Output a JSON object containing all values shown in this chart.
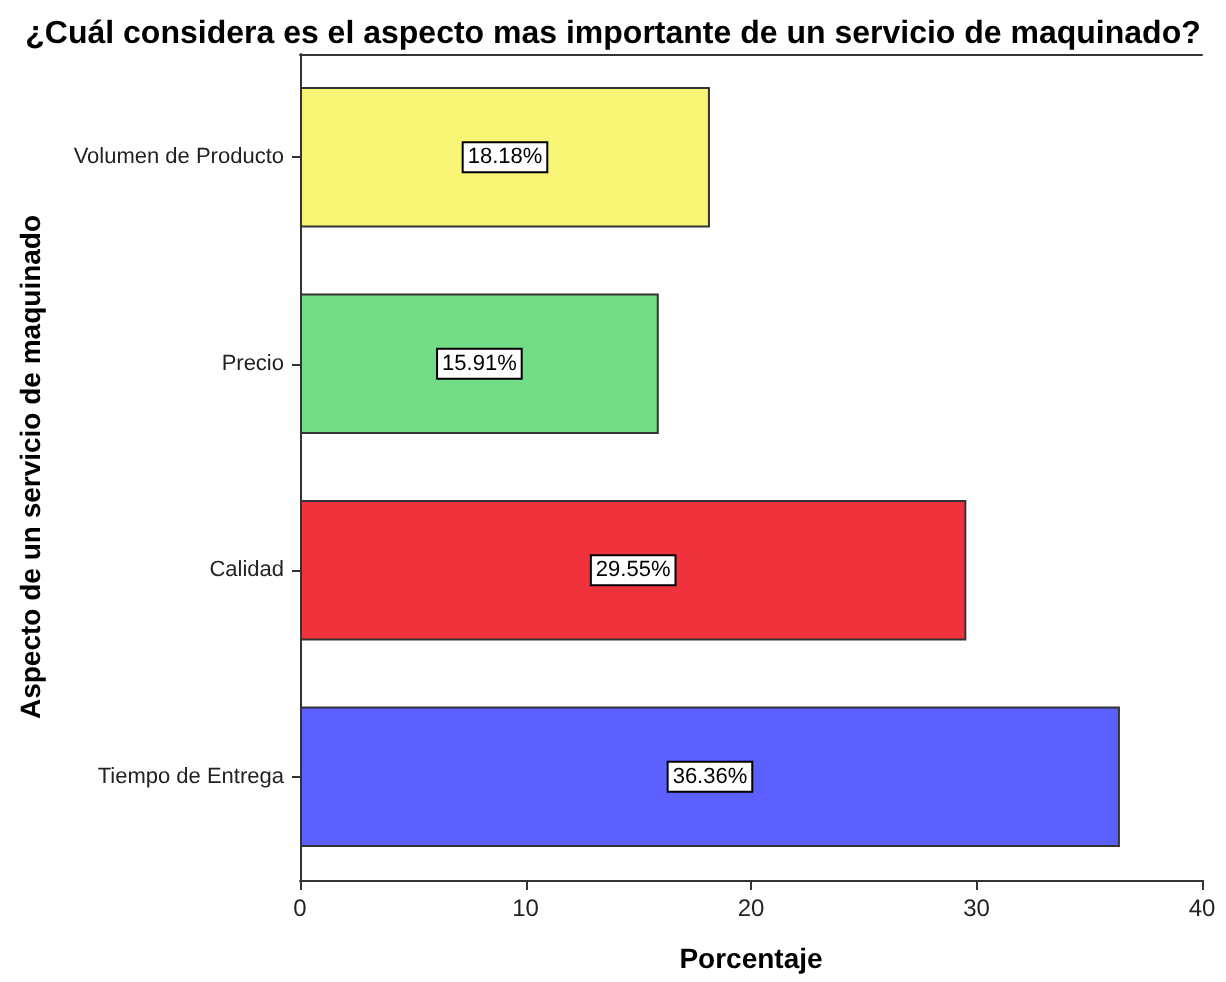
{
  "chart_data": {
    "type": "bar",
    "orientation": "horizontal",
    "title": "¿Cuál considera es el aspecto mas importante de un servicio de maquinado?",
    "xlabel": "Porcentaje",
    "ylabel": "Aspecto de un servicio de maquinado",
    "categories": [
      "Volumen de Producto",
      "Precio",
      "Calidad",
      "Tiempo de Entrega"
    ],
    "values": [
      18.18,
      15.91,
      29.55,
      36.36
    ],
    "colors": [
      "#f7f573",
      "#72dd86",
      "#ef323c",
      "#5b60fe"
    ],
    "value_labels": [
      "18.18%",
      "15.91%",
      "29.55%",
      "36.36%"
    ],
    "xlim": [
      0,
      40
    ],
    "xticks": [
      0,
      10,
      20,
      30,
      40
    ]
  }
}
